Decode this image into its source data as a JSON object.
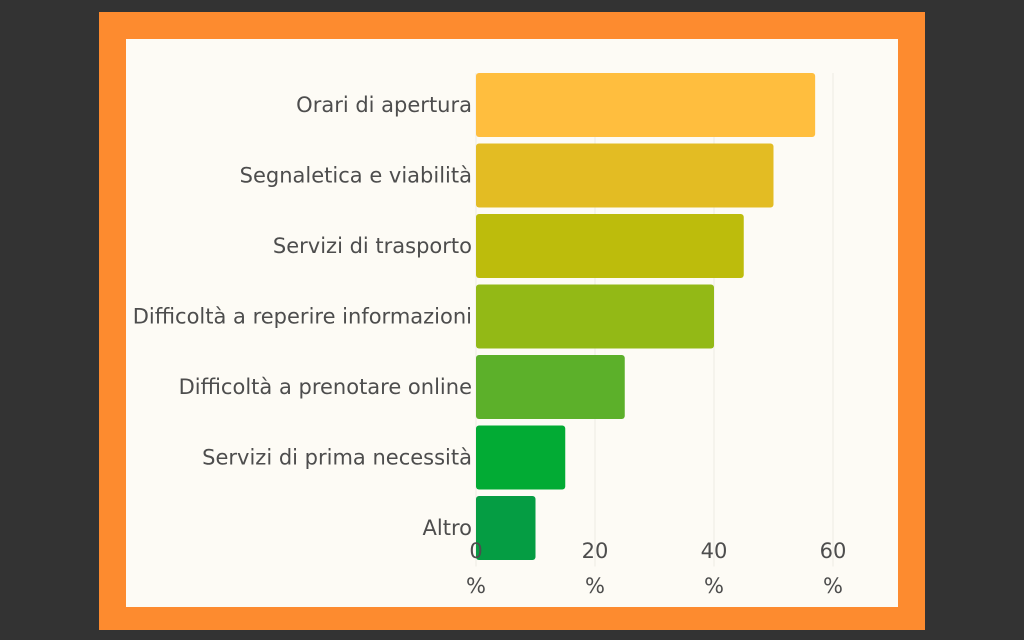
{
  "chart_data": {
    "type": "bar",
    "orientation": "horizontal",
    "categories": [
      "Orari di apertura",
      "Segnaletica e viabilità",
      "Servizi di trasporto ",
      "Difficoltà a reperire informazioni",
      "Difficoltà a prenotare online",
      "Servizi di prima necessità",
      "Altro"
    ],
    "values": [
      57,
      50,
      45,
      40,
      25,
      15,
      10
    ],
    "colors": [
      "#FFBE3E",
      "#E3BC23",
      "#BDBC0C",
      "#93B916",
      "#5CB02A",
      "#02AB34",
      "#059D43"
    ],
    "xlim": [
      0,
      60
    ],
    "xticks": [
      0,
      20,
      40,
      60
    ],
    "xtick_unit": "%",
    "grid": false,
    "title": "",
    "xlabel": "",
    "ylabel": ""
  },
  "colors": {
    "background": "#333333",
    "frame": "#FD8B2F",
    "panel": "#FDFBF5",
    "text": "#4D4D4D"
  }
}
